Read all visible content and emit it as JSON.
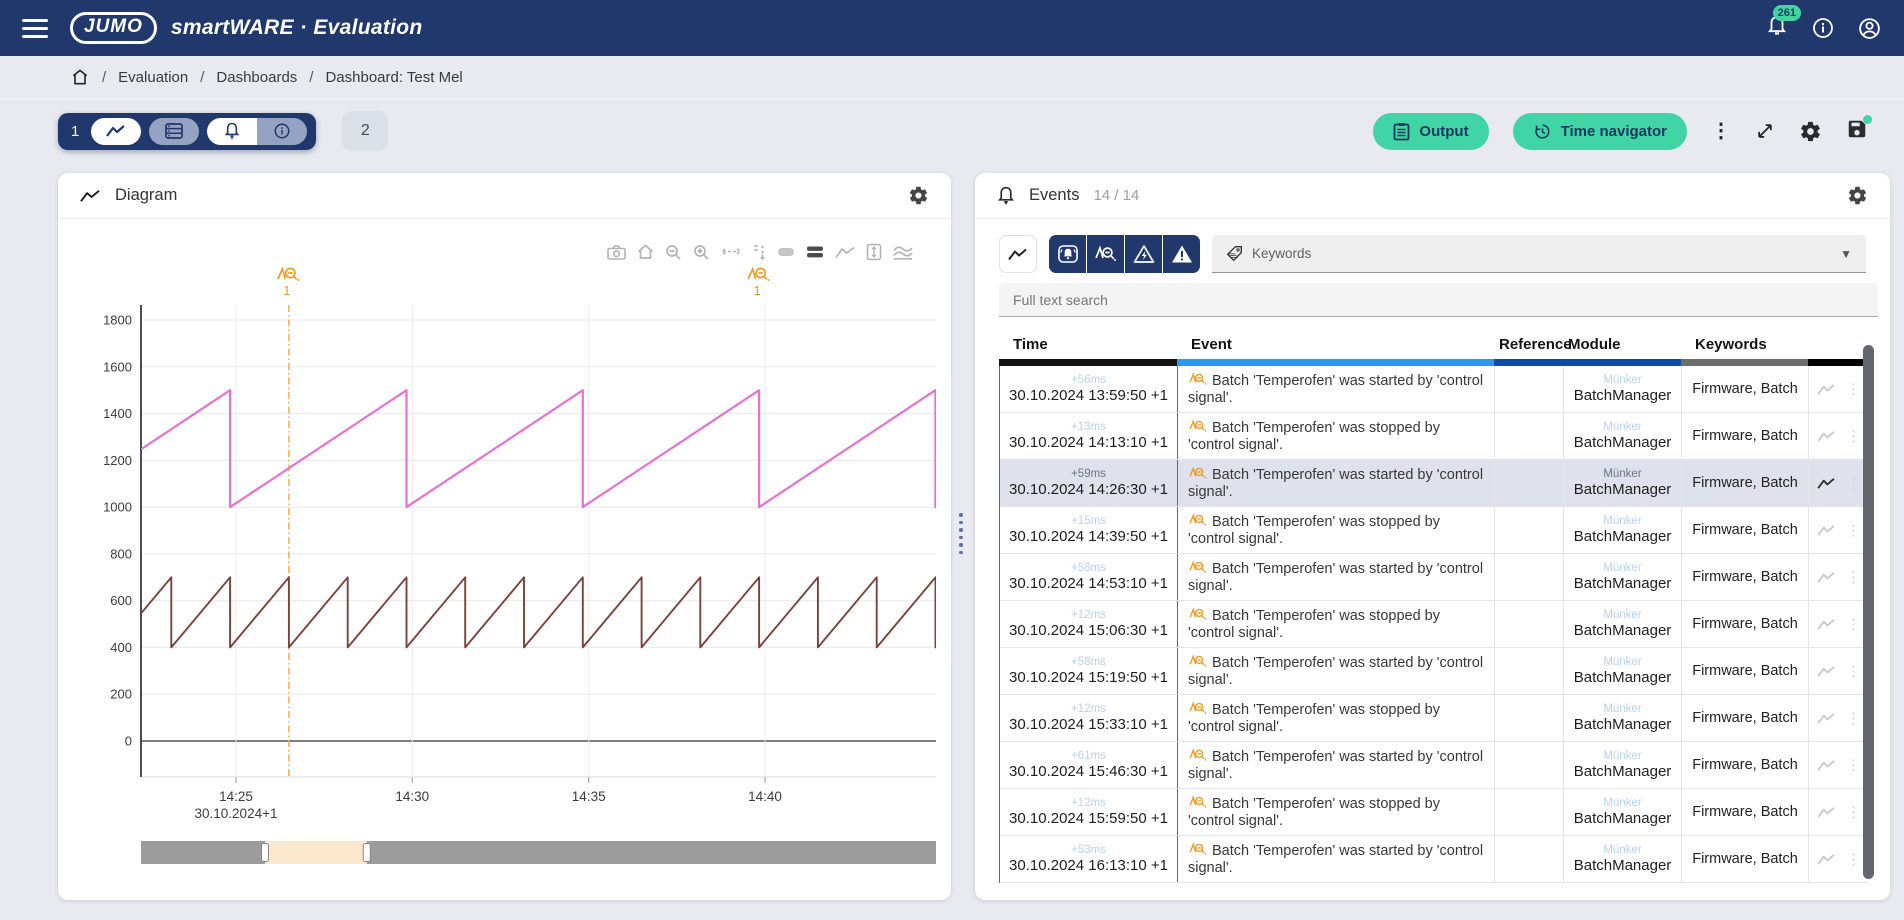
{
  "navbar": {
    "logo": "JUMO",
    "title": "smartWARE · Evaluation",
    "notification_count": "261"
  },
  "breadcrumb": {
    "separator": "/",
    "items": [
      "Evaluation",
      "Dashboards",
      "Dashboard: Test Mel"
    ]
  },
  "tabs": {
    "tab1_label": "1",
    "tab2_label": "2"
  },
  "toolbar": {
    "output_label": "Output",
    "time_navigator_label": "Time navigator"
  },
  "diagram": {
    "title": "Diagram",
    "chart_data": {
      "type": "line",
      "x_axis": {
        "tick_labels": [
          "14:25",
          "14:30",
          "14:35",
          "14:40"
        ],
        "tick_minutes": [
          25,
          30,
          35,
          40
        ],
        "date_label": "30.10.2024+1",
        "domain_minutes": [
          22.31,
          44.9
        ]
      },
      "y_axis": {
        "ticks": [
          0,
          200,
          400,
          600,
          800,
          1000,
          1200,
          1400,
          1600,
          1800
        ],
        "domain": [
          -154,
          1864
        ]
      },
      "series": [
        {
          "name": "series-pink",
          "color": "#e671d5",
          "min": 1000,
          "max": 1500,
          "period_minutes": 5,
          "drop_ref_minute": 29.8333,
          "width": 2.2
        },
        {
          "name": "series-brown",
          "color": "#7a4238",
          "min": 400,
          "max": 700,
          "period_minutes": 1.6667,
          "drop_ref_minute": 26.5,
          "width": 1.9
        }
      ],
      "annotations": [
        {
          "label": "1",
          "minute": 26.5,
          "dashed_line": true
        },
        {
          "label": "1",
          "minute": 39.8333,
          "dashed_line": false
        }
      ],
      "rangeslider": {
        "window_start_frac": 0.156,
        "window_end_frac": 0.284
      },
      "annotation_color": "#ef9b28"
    }
  },
  "events": {
    "title": "Events",
    "count": "14 / 14",
    "keywords_label": "Keywords",
    "search_placeholder": "Full text search",
    "columns": [
      "Time",
      "Event",
      "Reference",
      "Module",
      "Keywords"
    ],
    "header_bar_colors": [
      "#141414",
      "#2e97f3",
      "#0e4da3",
      "#0e4da3",
      "#6d6d6d",
      "#000000"
    ],
    "rows": [
      {
        "offset": "+56ms",
        "datetime": "30.10.2024 13:59:50 +1",
        "text": "Batch 'Temperofen' was started by 'control signal'.",
        "module_sub": "Münker",
        "module": "BatchManager",
        "keywords": "Firmware, Batch",
        "selected": false
      },
      {
        "offset": "+13ms",
        "datetime": "30.10.2024 14:13:10 +1",
        "text": "Batch 'Temperofen' was stopped by 'control signal'.",
        "module_sub": "Münker",
        "module": "BatchManager",
        "keywords": "Firmware, Batch",
        "selected": false
      },
      {
        "offset": "+59ms",
        "datetime": "30.10.2024 14:26:30 +1",
        "text": "Batch 'Temperofen' was started by 'control signal'.",
        "module_sub": "Münker",
        "module": "BatchManager",
        "keywords": "Firmware, Batch",
        "selected": true
      },
      {
        "offset": "+15ms",
        "datetime": "30.10.2024 14:39:50 +1",
        "text": "Batch 'Temperofen' was stopped by 'control signal'.",
        "module_sub": "Münker",
        "module": "BatchManager",
        "keywords": "Firmware, Batch",
        "selected": false
      },
      {
        "offset": "+58ms",
        "datetime": "30.10.2024 14:53:10 +1",
        "text": "Batch 'Temperofen' was started by 'control signal'.",
        "module_sub": "Münker",
        "module": "BatchManager",
        "keywords": "Firmware, Batch",
        "selected": false
      },
      {
        "offset": "+12ms",
        "datetime": "30.10.2024 15:06:30 +1",
        "text": "Batch 'Temperofen' was stopped by 'control signal'.",
        "module_sub": "Münker",
        "module": "BatchManager",
        "keywords": "Firmware, Batch",
        "selected": false
      },
      {
        "offset": "+58ms",
        "datetime": "30.10.2024 15:19:50 +1",
        "text": "Batch 'Temperofen' was started by 'control signal'.",
        "module_sub": "Münker",
        "module": "BatchManager",
        "keywords": "Firmware, Batch",
        "selected": false
      },
      {
        "offset": "+12ms",
        "datetime": "30.10.2024 15:33:10 +1",
        "text": "Batch 'Temperofen' was stopped by 'control signal'.",
        "module_sub": "Münker",
        "module": "BatchManager",
        "keywords": "Firmware, Batch",
        "selected": false
      },
      {
        "offset": "+61ms",
        "datetime": "30.10.2024 15:46:30 +1",
        "text": "Batch 'Temperofen' was started by 'control signal'.",
        "module_sub": "Münker",
        "module": "BatchManager",
        "keywords": "Firmware, Batch",
        "selected": false
      },
      {
        "offset": "+12ms",
        "datetime": "30.10.2024 15:59:50 +1",
        "text": "Batch 'Temperofen' was stopped by 'control signal'.",
        "module_sub": "Münker",
        "module": "BatchManager",
        "keywords": "Firmware, Batch",
        "selected": false
      },
      {
        "offset": "+53ms",
        "datetime": "30.10.2024 16:13:10 +1",
        "text": "Batch 'Temperofen' was started by 'control signal'.",
        "module_sub": "Münker",
        "module": "BatchManager",
        "keywords": "Firmware, Batch",
        "selected": false
      }
    ]
  }
}
